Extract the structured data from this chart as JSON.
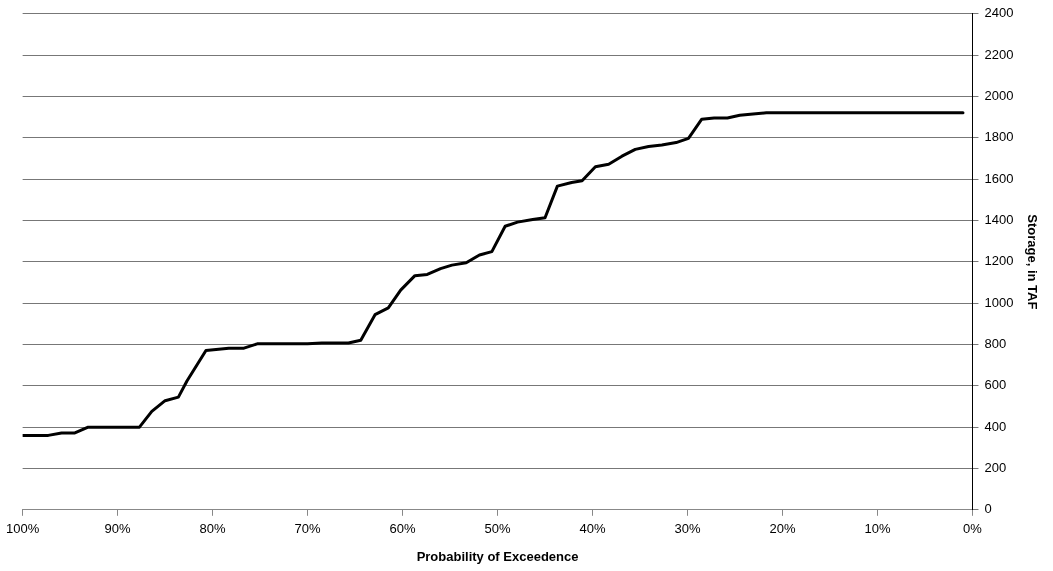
{
  "chart_data": {
    "type": "line",
    "xlabel": "Probability of Exceedence",
    "ylabel": "Storage, in TAF",
    "x": [
      100,
      97.3,
      95.9,
      94.5,
      93.1,
      87.7,
      86.4,
      85.0,
      83.6,
      82.7,
      80.7,
      78.3,
      76.7,
      75.3,
      70.0,
      68.5,
      65.7,
      64.4,
      62.9,
      61.5,
      60.2,
      58.7,
      57.4,
      56.0,
      54.8,
      53.3,
      51.9,
      50.6,
      49.2,
      47.9,
      46.3,
      45.0,
      43.7,
      42.2,
      41.1,
      39.7,
      38.3,
      36.9,
      35.5,
      34.1,
      32.7,
      31.2,
      29.9,
      28.5,
      27.2,
      25.8,
      24.5,
      23.1,
      21.7,
      1.0
    ],
    "series": [
      {
        "color": "#000000",
        "values": [
          360,
          360,
          372,
          372,
          400,
          400,
          476,
          528,
          545,
          623,
          771,
          782,
          782,
          803,
          803,
          807,
          807,
          820,
          944,
          977,
          1063,
          1133,
          1139,
          1167,
          1184,
          1195,
          1233,
          1249,
          1372,
          1392,
          1405,
          1413,
          1566,
          1584,
          1592,
          1660,
          1672,
          1711,
          1744,
          1758,
          1765,
          1777,
          1797,
          1890,
          1896,
          1896,
          1909,
          1915,
          1921,
          1921
        ]
      }
    ],
    "xlim": [
      100,
      0
    ],
    "xticks": [
      {
        "value": 100,
        "label": "100%"
      },
      {
        "value": 90,
        "label": "90%"
      },
      {
        "value": 80,
        "label": "80%"
      },
      {
        "value": 70,
        "label": "70%"
      },
      {
        "value": 60,
        "label": "60%"
      },
      {
        "value": 50,
        "label": "50%"
      },
      {
        "value": 40,
        "label": "40%"
      },
      {
        "value": 30,
        "label": "30%"
      },
      {
        "value": 20,
        "label": "20%"
      },
      {
        "value": 10,
        "label": "10%"
      },
      {
        "value": 0,
        "label": "0%"
      }
    ],
    "ylim": [
      0,
      2400
    ],
    "yticks": [
      0,
      200,
      400,
      600,
      800,
      1000,
      1200,
      1400,
      1600,
      1800,
      2000,
      2200,
      2400
    ],
    "grid": "y",
    "legend": false,
    "marker": "none",
    "line_style": "solid"
  }
}
